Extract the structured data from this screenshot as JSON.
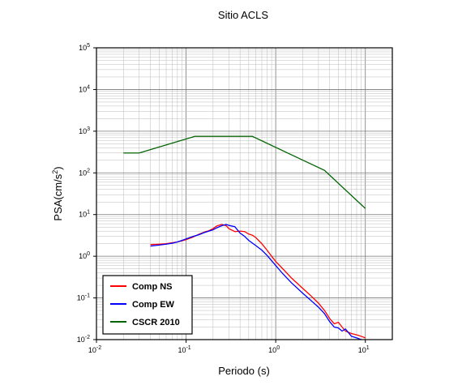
{
  "chart_data": {
    "type": "line",
    "title": "Sitio ACLS",
    "xlabel": "Periodo (s)",
    "ylabel_base": "PSA(cm/s",
    "ylabel_sup": "2",
    "ylabel_end": ")",
    "x_scale": "log",
    "y_scale": "log",
    "xlim": [
      0.01,
      20
    ],
    "ylim": [
      0.01,
      100000
    ],
    "grid": true,
    "legend_position": "bottom-left",
    "x_ticks": [
      {
        "value": 0.01,
        "base": "10",
        "exp": "-2"
      },
      {
        "value": 0.1,
        "base": "10",
        "exp": "-1"
      },
      {
        "value": 1,
        "base": "10",
        "exp": "0"
      },
      {
        "value": 10,
        "base": "10",
        "exp": "1"
      }
    ],
    "y_ticks": [
      {
        "value": 0.01,
        "base": "10",
        "exp": "-2"
      },
      {
        "value": 0.1,
        "base": "10",
        "exp": "-1"
      },
      {
        "value": 1,
        "base": "10",
        "exp": "0"
      },
      {
        "value": 10,
        "base": "10",
        "exp": "1"
      },
      {
        "value": 100,
        "base": "10",
        "exp": "2"
      },
      {
        "value": 1000,
        "base": "10",
        "exp": "3"
      },
      {
        "value": 10000,
        "base": "10",
        "exp": "4"
      },
      {
        "value": 100000,
        "base": "10",
        "exp": "5"
      }
    ],
    "series": [
      {
        "name": "Comp NS",
        "color": "#ff0000",
        "points": [
          [
            0.04,
            1.9
          ],
          [
            0.05,
            1.95
          ],
          [
            0.06,
            2.0
          ],
          [
            0.07,
            2.1
          ],
          [
            0.08,
            2.2
          ],
          [
            0.09,
            2.35
          ],
          [
            0.1,
            2.5
          ],
          [
            0.12,
            2.9
          ],
          [
            0.14,
            3.4
          ],
          [
            0.16,
            3.8
          ],
          [
            0.18,
            4.1
          ],
          [
            0.2,
            4.6
          ],
          [
            0.22,
            5.3
          ],
          [
            0.25,
            5.8
          ],
          [
            0.28,
            5.4
          ],
          [
            0.3,
            4.6
          ],
          [
            0.35,
            3.9
          ],
          [
            0.4,
            4.0
          ],
          [
            0.45,
            3.9
          ],
          [
            0.5,
            3.4
          ],
          [
            0.55,
            3.2
          ],
          [
            0.6,
            2.8
          ],
          [
            0.7,
            2.0
          ],
          [
            0.8,
            1.4
          ],
          [
            0.9,
            1.0
          ],
          [
            1.0,
            0.75
          ],
          [
            1.2,
            0.5
          ],
          [
            1.5,
            0.3
          ],
          [
            2.0,
            0.17
          ],
          [
            2.5,
            0.11
          ],
          [
            3.0,
            0.075
          ],
          [
            3.5,
            0.05
          ],
          [
            4.0,
            0.032
          ],
          [
            4.5,
            0.024
          ],
          [
            5.0,
            0.026
          ],
          [
            5.5,
            0.02
          ],
          [
            6.0,
            0.016
          ],
          [
            7.0,
            0.014
          ],
          [
            8.0,
            0.013
          ],
          [
            9.0,
            0.012
          ],
          [
            10.0,
            0.011
          ]
        ]
      },
      {
        "name": "Comp EW",
        "color": "#0000ff",
        "points": [
          [
            0.04,
            1.75
          ],
          [
            0.05,
            1.85
          ],
          [
            0.06,
            1.95
          ],
          [
            0.07,
            2.05
          ],
          [
            0.08,
            2.2
          ],
          [
            0.09,
            2.4
          ],
          [
            0.1,
            2.6
          ],
          [
            0.12,
            3.0
          ],
          [
            0.14,
            3.3
          ],
          [
            0.16,
            3.7
          ],
          [
            0.18,
            4.0
          ],
          [
            0.2,
            4.3
          ],
          [
            0.22,
            4.8
          ],
          [
            0.25,
            5.4
          ],
          [
            0.28,
            5.8
          ],
          [
            0.3,
            5.5
          ],
          [
            0.35,
            5.1
          ],
          [
            0.4,
            3.6
          ],
          [
            0.45,
            3.0
          ],
          [
            0.5,
            2.4
          ],
          [
            0.6,
            1.8
          ],
          [
            0.7,
            1.4
          ],
          [
            0.8,
            1.05
          ],
          [
            0.9,
            0.78
          ],
          [
            1.0,
            0.6
          ],
          [
            1.2,
            0.38
          ],
          [
            1.5,
            0.23
          ],
          [
            2.0,
            0.13
          ],
          [
            2.5,
            0.085
          ],
          [
            3.0,
            0.06
          ],
          [
            3.5,
            0.042
          ],
          [
            4.0,
            0.027
          ],
          [
            4.5,
            0.02
          ],
          [
            5.0,
            0.019
          ],
          [
            5.5,
            0.016
          ],
          [
            6.0,
            0.018
          ],
          [
            7.0,
            0.012
          ],
          [
            8.0,
            0.011
          ],
          [
            9.0,
            0.01
          ],
          [
            10.0,
            0.0095
          ]
        ]
      },
      {
        "name": "CSCR 2010",
        "color": "#006400",
        "points": [
          [
            0.02,
            300
          ],
          [
            0.03,
            300
          ],
          [
            0.125,
            750
          ],
          [
            0.55,
            750
          ],
          [
            3.5,
            115
          ],
          [
            10.0,
            14
          ]
        ]
      }
    ]
  }
}
